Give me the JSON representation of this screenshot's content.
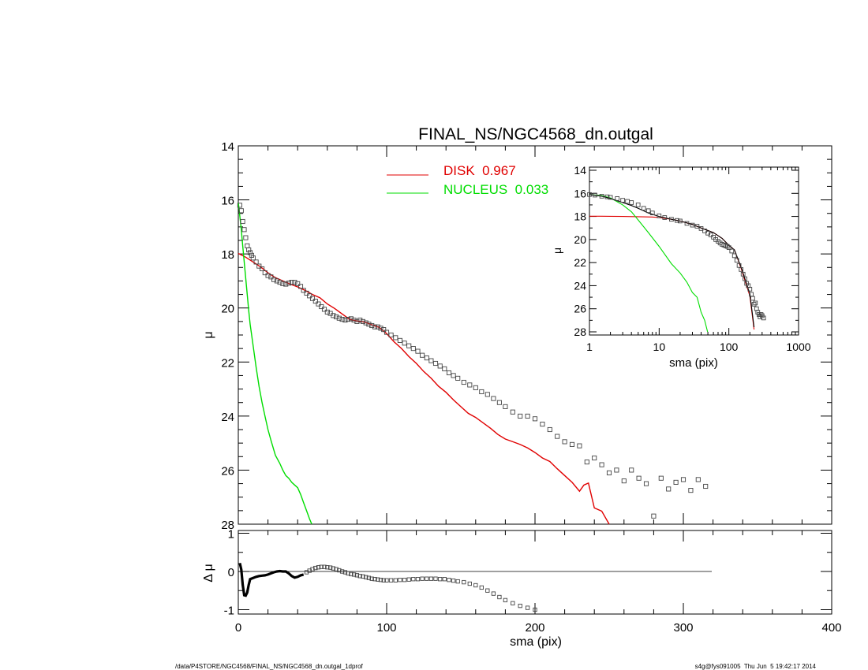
{
  "chart_data": [
    {
      "type": "scatter",
      "title": "FINAL_NS/NGC4568_dn.outgal",
      "xlabel": "",
      "ylabel": "μ",
      "xlim": [
        0,
        400
      ],
      "ylim": [
        28,
        14
      ],
      "yticks": [
        "14",
        "16",
        "18",
        "20",
        "22",
        "24",
        "26",
        "28"
      ],
      "legend": [
        {
          "label": "DISK  0.967",
          "color": "#e00000"
        },
        {
          "label": "NUCLEUS  0.033",
          "color": "#00dd00"
        }
      ],
      "series": [
        {
          "name": "DISK  0.967",
          "kind": "line",
          "color": "#e00000",
          "x": [
            0,
            5,
            10,
            15,
            20,
            25,
            30,
            35,
            40,
            45,
            50,
            55,
            60,
            65,
            70,
            75,
            80,
            85,
            90,
            95,
            100,
            105,
            110,
            115,
            120,
            125,
            130,
            135,
            140,
            145,
            150,
            155,
            160,
            165,
            170,
            175,
            180,
            185,
            190,
            195,
            200,
            205,
            210,
            215,
            220,
            225,
            230,
            233,
            236,
            240,
            245,
            250
          ],
          "y": [
            17.98,
            18.12,
            18.3,
            18.48,
            18.7,
            18.88,
            19.0,
            19.12,
            19.22,
            19.35,
            19.5,
            19.62,
            19.85,
            20.02,
            20.22,
            20.42,
            20.48,
            20.52,
            20.62,
            20.72,
            20.95,
            21.25,
            21.5,
            21.8,
            22.05,
            22.35,
            22.6,
            22.9,
            23.12,
            23.4,
            23.65,
            23.9,
            24.05,
            24.25,
            24.45,
            24.68,
            24.85,
            24.95,
            25.05,
            25.18,
            25.35,
            25.55,
            25.68,
            25.95,
            26.2,
            26.45,
            26.78,
            26.55,
            26.48,
            27.4,
            27.52,
            28.0
          ]
        },
        {
          "name": "NUCLEUS  0.033",
          "kind": "line",
          "color": "#00dd00",
          "x": [
            0,
            1,
            2,
            3,
            4,
            5,
            6,
            7,
            8,
            10,
            12,
            14,
            16,
            18,
            20,
            22,
            25,
            28,
            30,
            32,
            34,
            36,
            38,
            40,
            42,
            44,
            46,
            48,
            49.5
          ],
          "y": [
            16.1,
            16.6,
            17.1,
            17.7,
            18.3,
            18.9,
            19.5,
            20.1,
            20.6,
            21.4,
            22.2,
            22.9,
            23.5,
            24.0,
            24.5,
            24.9,
            25.45,
            25.75,
            26.0,
            26.2,
            26.3,
            26.45,
            26.55,
            26.65,
            26.9,
            27.2,
            27.5,
            27.8,
            28.0
          ]
        },
        {
          "name": "",
          "kind": "markers",
          "color": "#444444",
          "x": [
            1,
            2,
            3,
            4,
            5,
            6,
            7,
            8,
            9,
            10,
            12,
            14,
            16,
            18,
            20,
            22,
            24,
            26,
            28,
            30,
            32,
            34,
            36,
            38,
            40,
            42,
            44,
            46,
            48,
            50,
            52,
            54,
            56,
            58,
            60,
            62,
            64,
            66,
            68,
            70,
            72,
            74,
            76,
            78,
            80,
            82,
            84,
            86,
            88,
            90,
            92,
            94,
            96,
            98,
            100,
            103,
            106,
            109,
            112,
            115,
            118,
            121,
            124,
            127,
            130,
            133,
            136,
            139,
            142,
            145,
            148,
            152,
            156,
            160,
            164,
            168,
            172,
            176,
            180,
            185,
            190,
            195,
            200,
            205,
            210,
            215,
            220,
            225,
            230,
            235,
            240,
            245,
            250,
            255,
            260,
            265,
            270,
            275,
            280,
            285,
            290,
            295,
            300,
            305,
            310,
            315
          ],
          "y": [
            16.2,
            16.4,
            16.8,
            17.1,
            17.4,
            17.7,
            17.85,
            17.95,
            18.05,
            18.15,
            18.3,
            18.45,
            18.55,
            18.7,
            18.8,
            18.85,
            18.95,
            19.0,
            19.05,
            19.1,
            19.12,
            19.08,
            19.05,
            19.05,
            19.1,
            19.2,
            19.35,
            19.45,
            19.55,
            19.65,
            19.75,
            19.85,
            19.95,
            20.05,
            20.15,
            20.2,
            20.28,
            20.33,
            20.38,
            20.42,
            20.45,
            20.42,
            20.4,
            20.45,
            20.5,
            20.45,
            20.5,
            20.55,
            20.6,
            20.65,
            20.7,
            20.7,
            20.75,
            20.8,
            20.9,
            21.0,
            21.1,
            21.2,
            21.3,
            21.4,
            21.5,
            21.6,
            21.75,
            21.85,
            21.95,
            22.05,
            22.15,
            22.25,
            22.4,
            22.5,
            22.6,
            22.75,
            22.85,
            22.95,
            23.1,
            23.2,
            23.35,
            23.5,
            23.65,
            23.85,
            24.0,
            24.0,
            24.1,
            24.3,
            24.5,
            24.75,
            24.95,
            25.05,
            25.1,
            25.7,
            25.55,
            25.8,
            26.1,
            26.0,
            26.4,
            26.0,
            26.3,
            26.5,
            27.7,
            26.3,
            26.7,
            26.45,
            26.35,
            26.75,
            26.35,
            26.6
          ]
        }
      ]
    },
    {
      "type": "scatter",
      "xlabel": "sma (pix)",
      "ylabel": "Δ μ",
      "xlim": [
        0,
        400
      ],
      "ylim": [
        -1,
        1
      ],
      "xticks": [
        "0",
        "100",
        "200",
        "300",
        "400"
      ],
      "yticks": [
        "1",
        "0",
        "-1"
      ],
      "series": [
        {
          "name": "",
          "kind": "line",
          "color": "#000000",
          "x": [
            1,
            2,
            3,
            4,
            5,
            6,
            7,
            8,
            10,
            12,
            14,
            16,
            18,
            20,
            22,
            24,
            26,
            28,
            30,
            32,
            34,
            36,
            38,
            40,
            42,
            44
          ],
          "y": [
            0.22,
            0.05,
            -0.35,
            -0.62,
            -0.63,
            -0.55,
            -0.35,
            -0.2,
            -0.17,
            -0.14,
            -0.12,
            -0.11,
            -0.1,
            -0.08,
            -0.05,
            -0.02,
            0.0,
            0.01,
            0.0,
            0.0,
            -0.05,
            -0.12,
            -0.16,
            -0.14,
            -0.1,
            -0.08
          ]
        },
        {
          "name": "",
          "kind": "markers",
          "color": "#444444",
          "x": [
            46,
            48,
            50,
            52,
            54,
            56,
            58,
            60,
            62,
            64,
            66,
            68,
            70,
            72,
            74,
            76,
            78,
            80,
            82,
            84,
            86,
            88,
            90,
            92,
            94,
            96,
            98,
            100,
            103,
            106,
            109,
            112,
            115,
            118,
            121,
            124,
            127,
            130,
            133,
            136,
            139,
            142,
            145,
            148,
            152,
            156,
            160,
            164,
            168,
            172,
            176,
            180,
            185,
            190,
            195,
            200
          ],
          "y": [
            -0.02,
            0.02,
            0.06,
            0.09,
            0.11,
            0.12,
            0.12,
            0.11,
            0.1,
            0.08,
            0.06,
            0.03,
            0.0,
            -0.02,
            -0.05,
            -0.07,
            -0.08,
            -0.1,
            -0.12,
            -0.13,
            -0.15,
            -0.17,
            -0.19,
            -0.2,
            -0.21,
            -0.22,
            -0.23,
            -0.23,
            -0.23,
            -0.23,
            -0.22,
            -0.22,
            -0.21,
            -0.2,
            -0.2,
            -0.19,
            -0.19,
            -0.19,
            -0.19,
            -0.2,
            -0.2,
            -0.22,
            -0.24,
            -0.26,
            -0.28,
            -0.32,
            -0.36,
            -0.42,
            -0.5,
            -0.58,
            -0.67,
            -0.75,
            -0.83,
            -0.9,
            -0.95,
            -1.0
          ]
        }
      ]
    },
    {
      "type": "scatter",
      "inset": true,
      "xlabel": "sma (pix)",
      "ylabel": "μ",
      "xscale": "log",
      "xlim": [
        1,
        1000
      ],
      "ylim": [
        28,
        14
      ],
      "xticks": [
        "1",
        "10",
        "100",
        "1000"
      ],
      "yticks": [
        "14",
        "16",
        "18",
        "20",
        "22",
        "24",
        "26",
        "28"
      ],
      "series": [
        {
          "name": "",
          "kind": "line",
          "color": "#e00000",
          "x": [
            1,
            2,
            3,
            5,
            8,
            10,
            15,
            20,
            30,
            40,
            60,
            80,
            100,
            120,
            150,
            200,
            230
          ],
          "y": [
            17.98,
            17.99,
            18.0,
            18.02,
            18.05,
            18.1,
            18.25,
            18.4,
            18.7,
            19.0,
            19.4,
            19.9,
            20.5,
            20.9,
            22.5,
            24.9,
            27.8
          ]
        },
        {
          "name": "",
          "kind": "line",
          "color": "#00dd00",
          "x": [
            1,
            1.5,
            2,
            3,
            4,
            5,
            7,
            10,
            15,
            20,
            25,
            30,
            35,
            40,
            45,
            49.5
          ],
          "y": [
            16.1,
            16.2,
            16.4,
            17.0,
            17.6,
            18.3,
            19.4,
            20.6,
            22.1,
            22.9,
            23.7,
            24.6,
            25.0,
            26.3,
            27.0,
            28.0
          ]
        },
        {
          "name": "",
          "kind": "line",
          "color": "#000000",
          "x": [
            1,
            1.5,
            2,
            3,
            4,
            5,
            7,
            10,
            15,
            20,
            30,
            40,
            60,
            80,
            100,
            120,
            150,
            200,
            230
          ],
          "y": [
            16.1,
            16.25,
            16.45,
            16.8,
            17.05,
            17.3,
            17.7,
            18.0,
            18.25,
            18.4,
            18.7,
            19.0,
            19.4,
            19.9,
            20.5,
            20.9,
            22.4,
            24.7,
            27.6
          ]
        },
        {
          "name": "",
          "kind": "markers",
          "color": "#444444",
          "x": [
            1,
            1.2,
            1.5,
            1.8,
            2,
            2.5,
            3,
            3.5,
            4,
            5,
            6,
            7,
            8,
            10,
            12,
            15,
            18,
            20,
            25,
            30,
            35,
            40,
            45,
            50,
            55,
            60,
            65,
            70,
            75,
            80,
            85,
            90,
            95,
            100,
            110,
            120,
            130,
            140,
            150,
            160,
            170,
            180,
            190,
            200,
            210,
            220,
            230,
            240,
            250,
            260,
            270,
            280,
            290,
            300,
            315
          ],
          "y": [
            16.1,
            16.15,
            16.25,
            16.3,
            16.35,
            16.45,
            16.6,
            16.7,
            16.8,
            17.0,
            17.3,
            17.5,
            17.7,
            17.95,
            18.1,
            18.25,
            18.35,
            18.4,
            18.6,
            18.75,
            18.85,
            19.05,
            19.25,
            19.45,
            19.6,
            19.8,
            20.0,
            20.15,
            20.3,
            20.42,
            20.48,
            20.55,
            20.6,
            20.7,
            21.0,
            21.4,
            21.8,
            22.25,
            22.6,
            23.0,
            23.4,
            23.8,
            24.0,
            24.3,
            24.75,
            25.1,
            25.6,
            25.5,
            26.0,
            26.3,
            26.5,
            26.7,
            26.5,
            26.6,
            26.8
          ]
        }
      ]
    }
  ],
  "footer": {
    "left": "/data/P4STORE/NGC4568/FINAL_NS/NGC4568_dn.outgal_1dprof",
    "right": "s4g@fys091005  Thu Jun  5 19:42:17 2014"
  }
}
